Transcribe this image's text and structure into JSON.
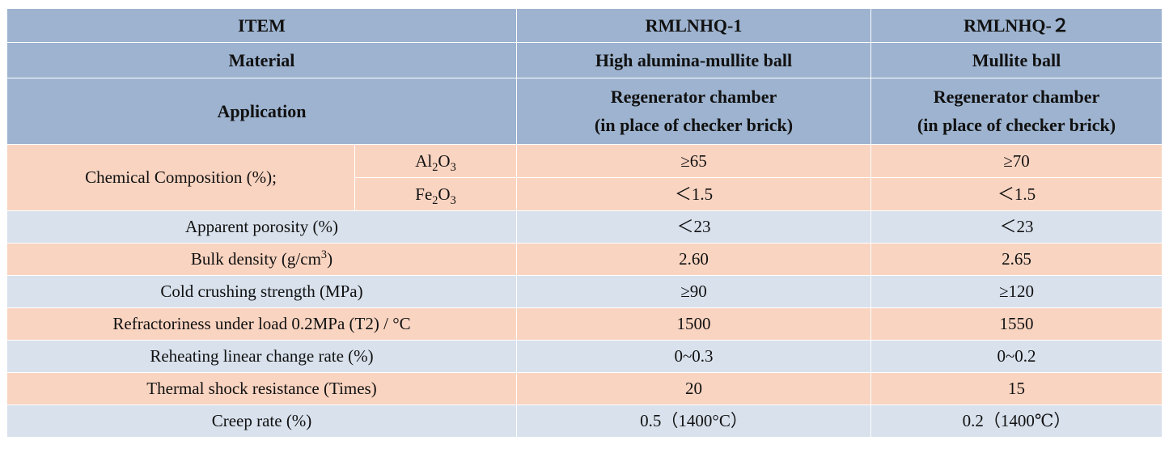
{
  "header": {
    "item_label": "ITEM",
    "col1": "RMLNHQ-1",
    "col2": "RMLNHQ-２"
  },
  "material": {
    "label": "Material",
    "col1": "High alumina-mullite ball",
    "col2": "Mullite ball"
  },
  "application": {
    "label": "Application",
    "col1_line1": "Regenerator chamber",
    "col1_line2": "(in place of checker brick)",
    "col2_line1": "Regenerator chamber",
    "col2_line2": "(in place of checker brick)"
  },
  "chemical": {
    "label": "Chemical Composition (%);",
    "al2o3": {
      "base1": "Al",
      "sub1": "2",
      "base2": "O",
      "sub2": "3",
      "col1": "≥65",
      "col2": "≥70"
    },
    "fe2o3": {
      "base1": "Fe",
      "sub1": "2",
      "base2": "O",
      "sub2": "3",
      "col1": "＜1.5",
      "col2": "＜1.5"
    }
  },
  "rows": [
    {
      "label": "Apparent porosity (%)",
      "col1": "＜23",
      "col2": "＜23"
    },
    {
      "label_pre": "Bulk density (g/cm",
      "label_sup": "3",
      "label_post": ")",
      "col1": "2.60",
      "col2": "2.65"
    },
    {
      "label": "Cold crushing strength (MPa)",
      "col1": "≥90",
      "col2": "≥120"
    },
    {
      "label": "Refractoriness under load 0.2MPa (T2) / °C",
      "col1": "1500",
      "col2": "1550"
    },
    {
      "label": "Reheating linear change rate (%)",
      "col1": "0~0.3",
      "col2": "0~0.2"
    },
    {
      "label": "Thermal shock resistance (Times)",
      "col1": "20",
      "col2": "15"
    },
    {
      "label": "Creep rate (%)",
      "col1": "0.5（1400°C）",
      "col2": "0.2（1400℃）"
    }
  ]
}
